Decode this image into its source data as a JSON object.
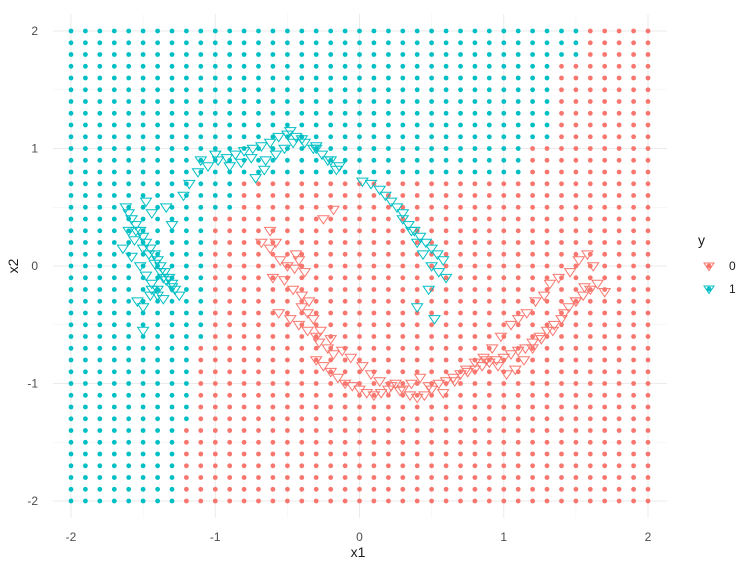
{
  "chart_data": {
    "type": "scatter",
    "title": "",
    "xlabel": "x1",
    "ylabel": "x2",
    "xlim": [
      -2.05,
      2.05
    ],
    "ylim": [
      -2.05,
      2.05
    ],
    "x_ticks": [
      -2,
      -1,
      0,
      1,
      2
    ],
    "y_ticks": [
      -2,
      -1,
      0,
      1,
      2
    ],
    "x_tick_labels": [
      "-2",
      "-1",
      "0",
      "1",
      "2"
    ],
    "y_tick_labels": [
      "-2",
      "-1",
      "0",
      "1",
      "2"
    ],
    "grid": true,
    "legend": {
      "title": "y",
      "position": "right",
      "entries": [
        {
          "label": "0",
          "color": "#F8766D"
        },
        {
          "label": "1",
          "color": "#00BFC4"
        }
      ]
    },
    "colors": {
      "class_0": "#F8766D",
      "class_1": "#00BFC4"
    },
    "background_grid": {
      "x_range": [
        -2,
        2
      ],
      "y_range": [
        -2,
        2
      ],
      "step": 0.1,
      "marker": "filled-circle",
      "decision_boundary": [
        {
          "y_min": 1.8,
          "y_max": 2.0,
          "x_threshold": 1.55
        },
        {
          "y_min": 1.1,
          "y_max": 1.7,
          "x_threshold": 1.35
        },
        {
          "y_min": 0.8,
          "y_max": 1.0,
          "x_threshold": 1.15
        },
        {
          "y_min": 0.5,
          "y_max": 0.7,
          "x_threshold": 0.95
        },
        {
          "y_min": 0.3,
          "y_max": 0.4,
          "x_threshold": 0.55
        },
        {
          "y_min": 0.0,
          "y_max": 0.2,
          "x_threshold": 0.45
        },
        {
          "y_min": -0.2,
          "y_max": -0.1,
          "x_threshold": 0.65
        },
        {
          "y_min": -0.5,
          "y_max": -0.3,
          "x_threshold": 0.85
        },
        {
          "y_min": -0.9,
          "y_max": -0.6,
          "x_threshold": 1.05
        }
      ],
      "left_boundary": [
        {
          "y_min": 0.5,
          "y_max": 0.7,
          "x_threshold": -0.85
        },
        {
          "y_min": -0.2,
          "y_max": 0.4,
          "x_threshold": -1.05
        },
        {
          "y_min": -0.6,
          "y_max": -0.3,
          "x_threshold": -1.05
        },
        {
          "y_min": -1.3,
          "y_max": -0.7,
          "x_threshold": -1.15
        },
        {
          "y_min": -2.0,
          "y_max": -1.4,
          "x_threshold": -1.25
        }
      ]
    },
    "series": [
      {
        "name": "0",
        "marker": "triangle-down",
        "color": "#F8766D",
        "x": [
          -0.68,
          -0.62,
          -0.55,
          -0.5,
          -0.45,
          -0.42,
          -0.38,
          -0.6,
          -0.52,
          -0.46,
          -0.4,
          -0.35,
          -0.56,
          -0.48,
          -0.42,
          -0.36,
          -0.3,
          -0.28,
          -0.22,
          -0.18,
          -0.3,
          -0.25,
          -0.2,
          -0.15,
          -0.1,
          -0.05,
          0.0,
          0.05,
          0.1,
          0.15,
          0.2,
          0.25,
          0.3,
          0.35,
          0.4,
          0.45,
          0.5,
          0.55,
          0.6,
          0.65,
          0.7,
          0.75,
          0.8,
          0.85,
          0.9,
          0.95,
          1.0,
          1.05,
          1.1,
          1.15,
          1.2,
          1.25,
          1.3,
          1.35,
          1.4,
          1.45,
          1.5,
          1.55,
          1.6,
          1.65,
          1.7,
          1.58,
          1.52,
          1.46,
          1.38,
          1.32,
          1.28,
          1.22,
          1.16,
          1.1,
          1.05,
          0.98,
          0.92,
          0.86,
          -0.4,
          -0.32,
          -0.27,
          -0.2,
          -0.12,
          -0.06,
          0.02,
          0.08,
          0.14,
          0.22,
          0.28,
          0.36,
          0.42,
          0.48,
          0.58,
          0.66,
          0.74,
          0.8,
          0.88,
          0.96,
          1.02,
          1.08,
          1.14,
          1.2,
          1.26,
          1.34,
          1.42,
          1.5,
          1.56,
          1.62,
          -0.62,
          -0.58,
          -0.44,
          -0.36,
          -0.25,
          -0.18
        ],
        "y": [
          0.2,
          0.15,
          0.05,
          0.0,
          -0.02,
          0.05,
          -0.05,
          -0.1,
          -0.12,
          -0.2,
          -0.25,
          -0.3,
          -0.4,
          -0.45,
          -0.5,
          -0.55,
          -0.6,
          -0.65,
          -0.7,
          -0.75,
          -0.8,
          -0.85,
          -0.9,
          -0.95,
          -1.0,
          -1.02,
          -1.05,
          -1.08,
          -1.1,
          -1.08,
          -1.05,
          -1.0,
          -1.05,
          -1.1,
          -1.12,
          -1.1,
          -1.05,
          -1.0,
          -0.98,
          -0.95,
          -0.92,
          -0.9,
          -0.88,
          -0.85,
          -0.82,
          -0.8,
          -0.78,
          -0.75,
          -0.72,
          -0.7,
          -0.65,
          -0.6,
          -0.55,
          -0.5,
          -0.45,
          -0.35,
          -0.3,
          -0.25,
          -0.2,
          -0.15,
          -0.22,
          0.1,
          0.05,
          -0.05,
          -0.1,
          -0.15,
          -0.25,
          -0.3,
          -0.4,
          -0.45,
          -0.5,
          -0.6,
          -0.7,
          -0.78,
          -0.35,
          -0.45,
          -0.55,
          -0.62,
          -0.72,
          -0.78,
          -0.85,
          -0.92,
          -0.98,
          -1.02,
          -1.06,
          -1.0,
          -0.95,
          -1.02,
          -1.08,
          -0.98,
          -0.88,
          -0.82,
          -0.8,
          -0.85,
          -0.92,
          -0.88,
          -0.8,
          -0.7,
          -0.62,
          -0.55,
          -0.4,
          -0.3,
          -0.18,
          0.0,
          0.3,
          0.2,
          0.1,
          -0.4,
          0.4,
          0.48
        ]
      },
      {
        "name": "1",
        "marker": "triangle-down",
        "color": "#00BFC4",
        "x": [
          -1.62,
          -1.58,
          -1.55,
          -1.52,
          -1.5,
          -1.48,
          -1.45,
          -1.42,
          -1.4,
          -1.38,
          -1.35,
          -1.32,
          -1.3,
          -1.28,
          -1.25,
          -1.6,
          -1.56,
          -1.5,
          -1.46,
          -1.42,
          -1.38,
          -1.34,
          -1.3,
          -1.64,
          -1.58,
          -1.52,
          -1.48,
          -1.44,
          -1.4,
          -1.36,
          -1.54,
          -1.5,
          -1.44,
          -1.4,
          -1.36,
          -1.3,
          -1.48,
          -1.44,
          -1.5,
          -1.45,
          -1.22,
          -1.18,
          -1.12,
          -1.05,
          -0.98,
          -0.92,
          -0.86,
          -0.8,
          -0.74,
          -0.68,
          -0.62,
          -0.56,
          -0.5,
          -0.44,
          -0.38,
          -0.32,
          -0.26,
          -0.2,
          -0.14,
          -1.1,
          -1.0,
          -0.9,
          -0.82,
          -0.75,
          -0.65,
          -0.58,
          -0.52,
          -0.46,
          -0.4,
          -0.3,
          -0.22,
          -0.16,
          0.02,
          0.08,
          0.14,
          0.18,
          0.22,
          0.26,
          0.3,
          0.34,
          0.38,
          0.42,
          0.46,
          0.5,
          0.54,
          0.58,
          0.3,
          0.36,
          0.4,
          0.44,
          0.5,
          0.55,
          0.6,
          0.48,
          0.52,
          0.4,
          -0.72,
          -0.66,
          -1.6,
          -1.55,
          -1.34,
          -0.48,
          -0.3
        ],
        "y": [
          0.5,
          0.4,
          0.35,
          0.3,
          0.25,
          0.2,
          0.15,
          0.1,
          0.05,
          0.0,
          -0.05,
          -0.1,
          -0.15,
          -0.2,
          -0.25,
          0.3,
          0.22,
          0.15,
          0.1,
          0.02,
          -0.05,
          -0.12,
          -0.18,
          0.15,
          0.08,
          0.0,
          -0.08,
          -0.15,
          -0.2,
          -0.28,
          -0.3,
          -0.35,
          -0.2,
          -0.25,
          -0.1,
          0.35,
          0.55,
          0.45,
          -0.55,
          -0.25,
          0.6,
          0.7,
          0.8,
          0.85,
          0.9,
          0.92,
          0.95,
          0.98,
          1.0,
          1.02,
          1.05,
          1.1,
          1.12,
          1.1,
          1.05,
          1.0,
          0.95,
          0.9,
          0.85,
          0.9,
          0.95,
          0.85,
          0.88,
          0.92,
          0.9,
          0.95,
          1.0,
          1.05,
          1.08,
          1.0,
          0.9,
          0.82,
          0.72,
          0.7,
          0.65,
          0.6,
          0.55,
          0.5,
          0.45,
          0.35,
          0.3,
          0.25,
          0.2,
          0.15,
          0.1,
          0.05,
          0.4,
          0.3,
          0.2,
          0.1,
          0.0,
          -0.05,
          -0.1,
          -0.2,
          -0.45,
          -0.35,
          0.75,
          0.82,
          0.45,
          0.3,
          0.5,
          1.15,
          1.02
        ]
      }
    ]
  }
}
